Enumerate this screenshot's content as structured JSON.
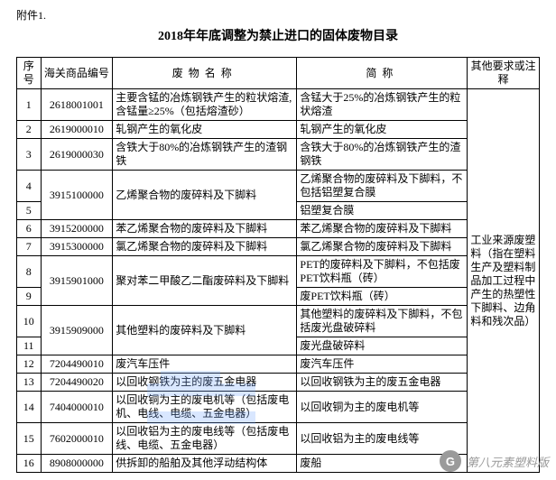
{
  "attachment_label": "附件1.",
  "title": "2018年年底调整为禁止进口的固体废物目录",
  "headers": {
    "seq": "序号",
    "code": "海关商品编号",
    "name": "废物名称",
    "abbr": "简称",
    "note": "其他要求或注释"
  },
  "note_merged": "工业来源废塑料（指在塑料生产及塑料制品加工过程中产生的热塑性下脚料、边角料和残次品）",
  "rows": [
    {
      "seq": "1",
      "code": "2618001001",
      "name": "主要含锰的冶炼钢铁产生的粒状熔渣, 含锰量≥25%（包括熔渣砂）",
      "abbr": "含锰大于25%的冶炼钢铁产生的粒状熔渣"
    },
    {
      "seq": "2",
      "code": "2619000010",
      "name": "轧钢产生的氧化皮",
      "abbr": "轧钢产生的氧化皮"
    },
    {
      "seq": "3",
      "code": "2619000030",
      "name": "含铁大于80%的冶炼钢铁产生的渣钢铁",
      "abbr": "含铁大于80%的冶炼钢铁产生的渣钢铁"
    },
    {
      "seq": "4",
      "code": "3915100000",
      "name": "乙烯聚合物的废碎料及下脚料",
      "abbr": "乙烯聚合物的废碎料及下脚料，不包括铝塑复合膜",
      "code_rowspan": 2,
      "name_rowspan": 2
    },
    {
      "seq": "5",
      "abbr": "铝塑复合膜"
    },
    {
      "seq": "6",
      "code": "3915200000",
      "name": "苯乙烯聚合物的废碎料及下脚料",
      "abbr": "苯乙烯聚合物的废碎料及下脚料"
    },
    {
      "seq": "7",
      "code": "3915300000",
      "name": "氯乙烯聚合物的废碎料及下脚料",
      "abbr": "氯乙烯聚合物的废碎料及下脚料"
    },
    {
      "seq": "8",
      "code": "3915901000",
      "name": "聚对苯二甲酸乙二酯废碎料及下脚料",
      "abbr": "PET的废碎料及下脚料，不包括废PET饮料瓶（砖）",
      "code_rowspan": 2,
      "name_rowspan": 2
    },
    {
      "seq": "9",
      "abbr": "废PET饮料瓶（砖）"
    },
    {
      "seq": "10",
      "code": "3915909000",
      "name": "其他塑料的废碎料及下脚料",
      "abbr": "其他塑料的废碎料及下脚料，不包括废光盘破碎料",
      "code_rowspan": 2,
      "name_rowspan": 2
    },
    {
      "seq": "11",
      "abbr": "废光盘破碎料"
    },
    {
      "seq": "12",
      "code": "7204490010",
      "name": "废汽车压件",
      "abbr": "废汽车压件"
    },
    {
      "seq": "13",
      "code": "7204490020",
      "name": "以回收钢铁为主的废五金电器",
      "abbr": "以回收钢铁为主的废五金电器"
    },
    {
      "seq": "14",
      "code": "7404000010",
      "name": "以回收铜为主的废电机等（包括废电机、电线、电缆、五金电器）",
      "abbr": "以回收铜为主的废电机等"
    },
    {
      "seq": "15",
      "code": "7602000010",
      "name": "以回收铝为主的废电线等（包括废电线、电缆、五金电器）",
      "abbr": "以回收铝为主的废电线等"
    },
    {
      "seq": "16",
      "code": "8908000000",
      "name": "供拆卸的船舶及其他浮动结构体",
      "abbr": "废船"
    }
  ],
  "watermark": {
    "glyph": "G",
    "text": "第八元素塑料版"
  }
}
